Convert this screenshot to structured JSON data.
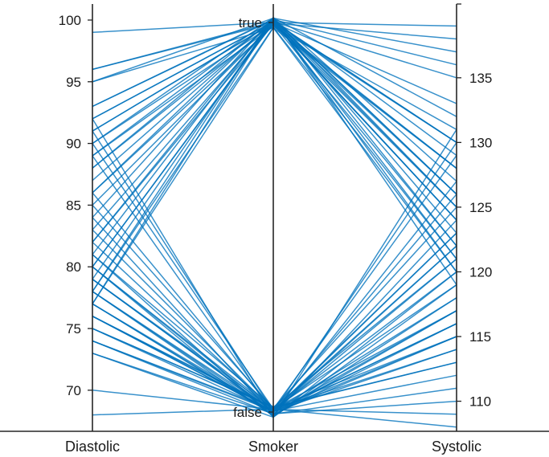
{
  "chart_data": {
    "type": "parallel-coordinates",
    "title": "",
    "line_color": "#0072BD",
    "axes": [
      {
        "label": "Diastolic",
        "kind": "numeric",
        "range": [
          66.8,
          101.3
        ],
        "ticks": [
          70,
          75,
          80,
          85,
          90,
          95,
          100
        ],
        "tick_side": "left"
      },
      {
        "label": "Smoker",
        "kind": "categorical",
        "categories": [
          "false",
          "true"
        ],
        "tick_side": "left"
      },
      {
        "label": "Systolic",
        "kind": "numeric",
        "range": [
          107.8,
          140.7
        ],
        "ticks": [
          110,
          115,
          120,
          125,
          130,
          135
        ],
        "tick_side": "right"
      }
    ],
    "rows": [
      [
        99,
        "true",
        139
      ],
      [
        96,
        "true",
        138
      ],
      [
        95,
        "true",
        137
      ],
      [
        93,
        "true",
        136
      ],
      [
        92,
        "true",
        135
      ],
      [
        91,
        "true",
        133
      ],
      [
        90,
        "true",
        132
      ],
      [
        89,
        "true",
        131
      ],
      [
        88,
        "true",
        130
      ],
      [
        87,
        "true",
        130
      ],
      [
        86,
        "true",
        129
      ],
      [
        86,
        "true",
        128
      ],
      [
        85,
        "true",
        128
      ],
      [
        84,
        "true",
        127
      ],
      [
        83,
        "true",
        126
      ],
      [
        82,
        "true",
        126
      ],
      [
        82,
        "true",
        125
      ],
      [
        81,
        "true",
        125
      ],
      [
        80,
        "true",
        124
      ],
      [
        80,
        "true",
        124
      ],
      [
        79,
        "true",
        123
      ],
      [
        78,
        "true",
        122
      ],
      [
        78,
        "true",
        121
      ],
      [
        77,
        "true",
        120
      ],
      [
        77,
        "true",
        119
      ],
      [
        96,
        "true",
        130
      ],
      [
        95,
        "true",
        128
      ],
      [
        93,
        "true",
        126
      ],
      [
        92,
        "true",
        125
      ],
      [
        91,
        "true",
        124
      ],
      [
        90,
        "true",
        122
      ],
      [
        89,
        "true",
        121
      ],
      [
        88,
        "true",
        120
      ],
      [
        92,
        "false",
        131
      ],
      [
        91,
        "false",
        130
      ],
      [
        90,
        "false",
        129
      ],
      [
        89,
        "false",
        127
      ],
      [
        86,
        "false",
        126
      ],
      [
        85,
        "false",
        125
      ],
      [
        84,
        "false",
        124
      ],
      [
        83,
        "false",
        123
      ],
      [
        82,
        "false",
        122
      ],
      [
        81,
        "false",
        121
      ],
      [
        81,
        "false",
        120
      ],
      [
        80,
        "false",
        119
      ],
      [
        80,
        "false",
        118
      ],
      [
        79,
        "false",
        118
      ],
      [
        79,
        "false",
        117
      ],
      [
        78,
        "false",
        117
      ],
      [
        78,
        "false",
        116
      ],
      [
        77,
        "false",
        116
      ],
      [
        77,
        "false",
        115
      ],
      [
        76,
        "false",
        115
      ],
      [
        76,
        "false",
        114
      ],
      [
        76,
        "false",
        114
      ],
      [
        75,
        "false",
        113
      ],
      [
        75,
        "false",
        113
      ],
      [
        74,
        "false",
        112
      ],
      [
        74,
        "false",
        111
      ],
      [
        73,
        "false",
        110
      ],
      [
        73,
        "false",
        119
      ],
      [
        74,
        "false",
        120
      ],
      [
        75,
        "false",
        121
      ],
      [
        76,
        "false",
        122
      ],
      [
        77,
        "false",
        123
      ],
      [
        78,
        "false",
        117
      ],
      [
        79,
        "false",
        116
      ],
      [
        80,
        "false",
        115
      ],
      [
        70,
        "false",
        109
      ],
      [
        68,
        "false",
        108
      ]
    ]
  }
}
